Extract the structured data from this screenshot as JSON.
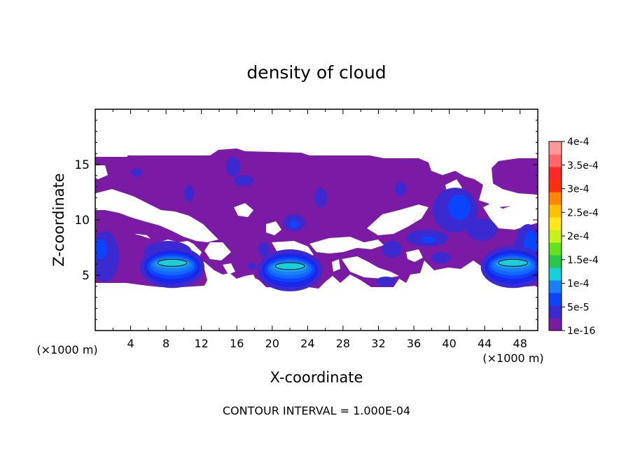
{
  "chart_data": {
    "type": "heatmap",
    "title": "density of cloud",
    "xlabel": "X-coordinate",
    "ylabel": "Z-coordinate",
    "x_unit": "(×1000 m)",
    "xlim": [
      0,
      50
    ],
    "ylim": [
      0,
      20
    ],
    "x_ticks": [
      "4",
      "8",
      "12",
      "16",
      "20",
      "24",
      "28",
      "32",
      "36",
      "40",
      "44",
      "48"
    ],
    "y_ticks": [
      "5",
      "10",
      "15"
    ],
    "footer": "CONTOUR INTERVAL = 1.000E-04",
    "colorbar": {
      "labels": [
        "1e-16",
        "5e-5",
        "1e-4",
        "1.5e-4",
        "2e-4",
        "2.5e-4",
        "3e-4",
        "3.5e-4",
        "4e-4"
      ],
      "colors": [
        "#7a1aa5",
        "#3a2ad0",
        "#0a44ff",
        "#1a7ff5",
        "#18d0d8",
        "#28c848",
        "#62e21c",
        "#c8f01a",
        "#ffe81a",
        "#ffc000",
        "#ff8800",
        "#ff3010",
        "#ff2828",
        "#ff6868",
        "#ff9898"
      ]
    },
    "blobs": [
      {
        "x": 8.7,
        "z": 6.5,
        "peak": "1.5e-4"
      },
      {
        "x": 22.0,
        "z": 6.2,
        "peak": "1.5e-4"
      },
      {
        "x": 47.2,
        "z": 6.5,
        "peak": "1.5e-4"
      }
    ],
    "grid": false,
    "legend": "right"
  }
}
